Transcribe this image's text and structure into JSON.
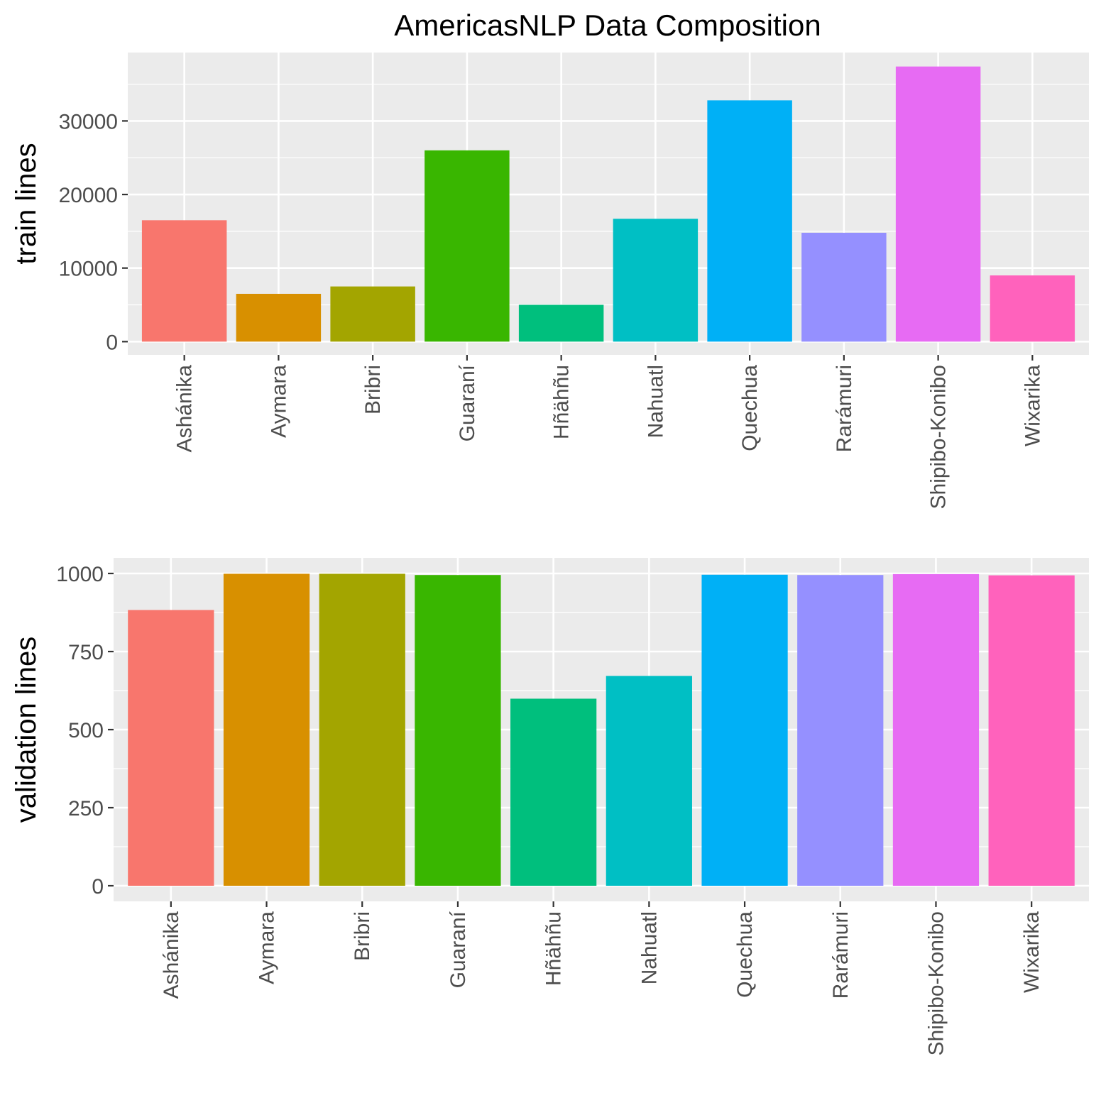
{
  "title": "AmericasNLP Data Composition",
  "chart_data": [
    {
      "type": "bar",
      "title": "",
      "xlabel": "",
      "ylabel": "train lines",
      "categories": [
        "Ashánika",
        "Aymara",
        "Bribri",
        "Guaraní",
        "Hñähñu",
        "Nahuatl",
        "Quechua",
        "Rarámuri",
        "Shipibo-Konibo",
        "Wixarika"
      ],
      "values": [
        16500,
        6500,
        7500,
        26000,
        5000,
        16700,
        32800,
        14800,
        37400,
        9000
      ],
      "colors": [
        "#F8766D",
        "#D89000",
        "#A3A500",
        "#39B600",
        "#00BF7D",
        "#00BFC4",
        "#00B0F6",
        "#9590FF",
        "#E76BF3",
        "#FF62BC"
      ],
      "ylim": [
        -1800,
        39300
      ],
      "yticks": [
        0,
        10000,
        20000,
        30000
      ],
      "ytick_labels": [
        "0",
        "10000",
        "20000",
        "30000"
      ],
      "grid": true,
      "legend": "none"
    },
    {
      "type": "bar",
      "title": "",
      "xlabel": "",
      "ylabel": "validation lines",
      "categories": [
        "Ashánika",
        "Aymara",
        "Bribri",
        "Guaraní",
        "Hñähñu",
        "Nahuatl",
        "Quechua",
        "Rarámuri",
        "Shipibo-Konibo",
        "Wixarika"
      ],
      "values": [
        883,
        999,
        999,
        995,
        599,
        672,
        996,
        995,
        998,
        994
      ],
      "colors": [
        "#F8766D",
        "#D89000",
        "#A3A500",
        "#39B600",
        "#00BF7D",
        "#00BFC4",
        "#00B0F6",
        "#9590FF",
        "#E76BF3",
        "#FF62BC"
      ],
      "ylim": [
        -50,
        1050
      ],
      "yticks": [
        0,
        250,
        500,
        750,
        1000
      ],
      "ytick_labels": [
        "0",
        "250",
        "500",
        "750",
        "1000"
      ],
      "grid": true,
      "legend": "none"
    }
  ]
}
